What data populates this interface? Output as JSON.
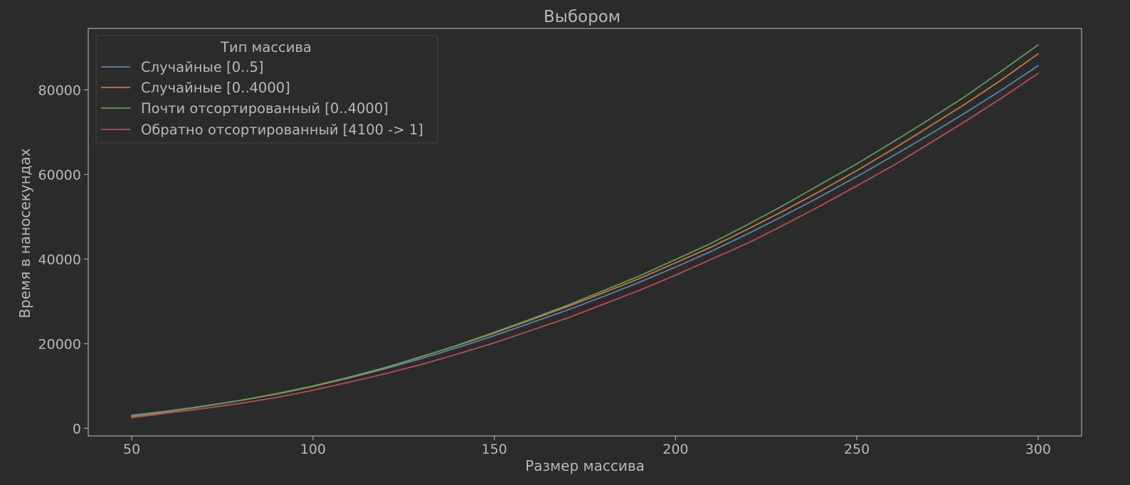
{
  "chart_data": {
    "type": "line",
    "title": "Выбором",
    "xlabel": "Размер массива",
    "ylabel": "Время в наносекундах",
    "xlim": [
      38,
      312
    ],
    "ylim": [
      -1800,
      94500
    ],
    "x_ticks": [
      50,
      100,
      150,
      200,
      250,
      300
    ],
    "y_ticks": [
      0,
      20000,
      40000,
      60000,
      80000
    ],
    "x_tick_labels": [
      "50",
      "100",
      "150",
      "200",
      "250",
      "300"
    ],
    "y_tick_labels": [
      "0",
      "20000",
      "40000",
      "60000",
      "80000"
    ],
    "grid": false,
    "legend": {
      "title": "Тип массива",
      "position": "top-left"
    },
    "x": [
      50,
      60,
      70,
      80,
      90,
      100,
      110,
      120,
      130,
      140,
      150,
      160,
      170,
      180,
      190,
      200,
      210,
      220,
      230,
      240,
      250,
      260,
      270,
      280,
      290,
      300
    ],
    "series": [
      {
        "name": "Случайные [0..5]",
        "color": "#5b84a8",
        "values": [
          3100,
          4100,
          5300,
          6600,
          8100,
          9900,
          11900,
          14100,
          16500,
          19100,
          21900,
          24900,
          27900,
          31100,
          34500,
          38100,
          41900,
          46000,
          50300,
          54800,
          59500,
          64400,
          69400,
          74600,
          80000,
          85700
        ]
      },
      {
        "name": "Случайные [0..4000]",
        "color": "#c97a3a",
        "values": [
          2800,
          3900,
          5200,
          6600,
          8100,
          9900,
          12000,
          14300,
          17000,
          19600,
          22500,
          25600,
          28700,
          32000,
          35400,
          39100,
          42900,
          47100,
          51500,
          56100,
          60900,
          66000,
          71300,
          76700,
          82400,
          88500
        ]
      },
      {
        "name": "Почти отсортированный [0..4000]",
        "color": "#5f9e55",
        "values": [
          2900,
          4000,
          5200,
          6600,
          8200,
          10000,
          12100,
          14400,
          16900,
          19700,
          22700,
          25800,
          29000,
          32500,
          36000,
          39900,
          43800,
          48200,
          52800,
          57700,
          62500,
          67700,
          73000,
          78500,
          84500,
          90600
        ]
      },
      {
        "name": "Обратно отсортированный [4100 -> 1]",
        "color": "#b84e55",
        "values": [
          2500,
          3600,
          4700,
          5900,
          7300,
          9000,
          10900,
          12900,
          15100,
          17600,
          20200,
          23100,
          26000,
          29300,
          32600,
          36200,
          40000,
          43800,
          48100,
          52600,
          57300,
          62100,
          67300,
          72600,
          78100,
          83900
        ]
      }
    ]
  }
}
